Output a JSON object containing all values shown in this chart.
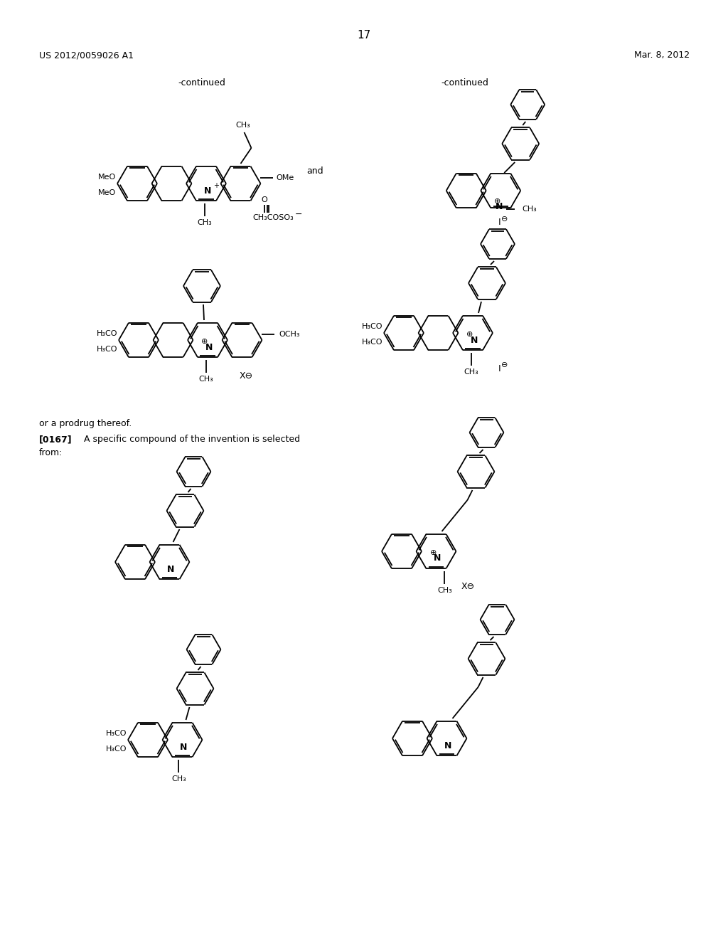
{
  "background_color": "#ffffff",
  "page_number": "17",
  "header_left": "US 2012/0059026 A1",
  "header_right": "Mar. 8, 2012",
  "figsize": [
    10.24,
    13.2
  ],
  "dpi": 100
}
